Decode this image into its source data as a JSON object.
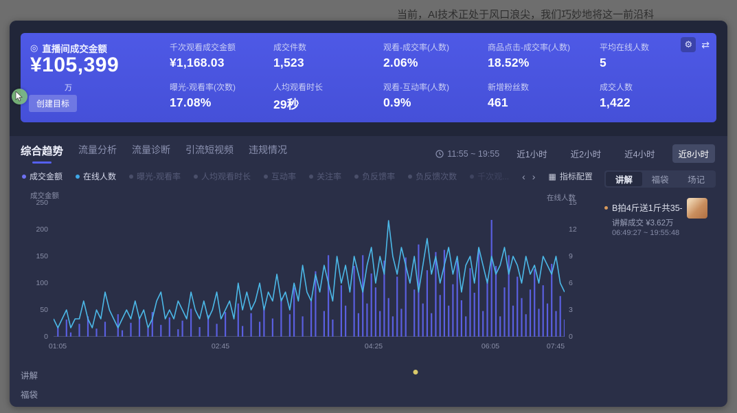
{
  "page": {
    "caption": "当前，AI技术正处于风口浪尖，我们巧妙地将这一前沿科"
  },
  "icons": {
    "target": "◎",
    "gear": "⚙",
    "swap": "⇄",
    "grid": "▦",
    "prev": "‹",
    "next": "›"
  },
  "summary_card": {
    "main_label": "直播间成交金额",
    "main_value": "¥105,399",
    "main_unit": "万",
    "create_goal_button": "创建目标",
    "metrics": [
      {
        "label": "千次观看成交金额",
        "value": "¥1,168.03"
      },
      {
        "label": "成交件数",
        "value": "1,523"
      },
      {
        "label": "观看-成交率(人数)",
        "value": "2.06%"
      },
      {
        "label": "商品点击-成交率(人数)",
        "value": "18.52%"
      },
      {
        "label": "平均在线人数",
        "value": "5"
      },
      {
        "label": "曝光-观看率(次数)",
        "value": "17.08%"
      },
      {
        "label": "人均观看时长",
        "value": "29秒"
      },
      {
        "label": "观看-互动率(人数)",
        "value": "0.9%"
      },
      {
        "label": "新增粉丝数",
        "value": "461"
      },
      {
        "label": "成交人数",
        "value": "1,422"
      }
    ]
  },
  "tabs": [
    {
      "label": "综合趋势",
      "active": true
    },
    {
      "label": "流量分析",
      "active": false
    },
    {
      "label": "流量诊断",
      "active": false
    },
    {
      "label": "引流短视频",
      "active": false
    },
    {
      "label": "违规情况",
      "active": false
    }
  ],
  "time_filter": {
    "range": "11:55 ~ 19:55",
    "options": [
      {
        "label": "近1小时",
        "active": false
      },
      {
        "label": "近2小时",
        "active": false
      },
      {
        "label": "近4小时",
        "active": false
      },
      {
        "label": "近8小时",
        "active": true
      }
    ]
  },
  "legend": {
    "items": [
      {
        "label": "成交金额",
        "color": "#6e71f2",
        "active": true
      },
      {
        "label": "在线人数",
        "color": "#3fa8e8",
        "active": true
      },
      {
        "label": "曝光-观看率",
        "color": "#4a4f6a",
        "active": false
      },
      {
        "label": "人均观看时长",
        "color": "#4a4f6a",
        "active": false
      },
      {
        "label": "互动率",
        "color": "#4a4f6a",
        "active": false
      },
      {
        "label": "关注率",
        "color": "#4a4f6a",
        "active": false
      },
      {
        "label": "负反馈率",
        "color": "#4a4f6a",
        "active": false
      },
      {
        "label": "负反馈次数",
        "color": "#4a4f6a",
        "active": false
      },
      {
        "label": "千次观...",
        "color": "#3f4460",
        "active": false
      }
    ],
    "config_label": "指标配置"
  },
  "chart_data": {
    "type": "line",
    "title": "综合趋势",
    "x_ticks": [
      "01:05",
      "02:45",
      "04:25",
      "06:05",
      "07:45"
    ],
    "left_axis": {
      "label": "成交金额",
      "range": [
        0,
        250
      ],
      "ticks": [
        250,
        200,
        150,
        100,
        50,
        0
      ]
    },
    "right_axis": {
      "label": "在线人数",
      "range": [
        0,
        15
      ],
      "ticks": [
        15,
        12,
        9,
        6,
        3,
        0
      ]
    },
    "grid": false,
    "legend_position": "top",
    "series": [
      {
        "name": "成交金额",
        "type": "spike",
        "axis": "left",
        "color": "#5a5fe0",
        "values": [
          0,
          18,
          0,
          32,
          8,
          0,
          24,
          0,
          38,
          0,
          15,
          0,
          28,
          0,
          0,
          42,
          12,
          0,
          26,
          0,
          34,
          0,
          16,
          46,
          0,
          22,
          0,
          36,
          0,
          14,
          30,
          0,
          52,
          0,
          18,
          0,
          40,
          0,
          24,
          0,
          46,
          0,
          0,
          62,
          20,
          0,
          44,
          0,
          28,
          56,
          0,
          34,
          0,
          72,
          0,
          42,
          92,
          0,
          38,
          0,
          66,
          122,
          0,
          48,
          152,
          32,
          0,
          96,
          58,
          0,
          132,
          44,
          152,
          62,
          118,
          92,
          48,
          142,
          72,
          38,
          112,
          52,
          148,
          0,
          88,
          172,
          62,
          124,
          44,
          158,
          78,
          162,
          58,
          98,
          142,
          68,
          38,
          128,
          82,
          164,
          48,
          108,
          218,
          132,
          38,
          92,
          152,
          58,
          112,
          72,
          42,
          88,
          126,
          52,
          96,
          62,
          136,
          48,
          76,
          32
        ]
      },
      {
        "name": "在线人数",
        "type": "line",
        "axis": "right",
        "color": "#4cb9e8",
        "values": [
          2,
          1,
          2,
          3,
          1,
          2,
          2,
          4,
          2,
          1,
          3,
          2,
          5,
          3,
          2,
          1,
          2,
          3,
          2,
          4,
          2,
          3,
          1,
          2,
          4,
          5,
          2,
          3,
          2,
          4,
          3,
          2,
          5,
          3,
          2,
          4,
          2,
          3,
          5,
          2,
          3,
          4,
          2,
          6,
          3,
          5,
          3,
          4,
          6,
          3,
          5,
          4,
          7,
          4,
          5,
          3,
          6,
          4,
          8,
          5,
          4,
          7,
          5,
          8,
          6,
          4,
          9,
          6,
          8,
          5,
          9,
          7,
          5,
          8,
          10,
          6,
          9,
          7,
          13,
          9,
          7,
          10,
          8,
          6,
          9,
          5,
          8,
          11,
          7,
          9,
          6,
          8,
          10,
          7,
          9,
          5,
          8,
          9,
          6,
          10,
          8,
          6,
          9,
          7,
          8,
          10,
          7,
          9,
          8,
          6,
          9,
          7,
          8,
          6,
          9,
          8,
          7,
          9,
          6,
          5
        ]
      }
    ]
  },
  "timeline": {
    "rows": [
      "讲解",
      "福袋"
    ],
    "marker_row": "讲解",
    "marker_frac": 0.708,
    "marker_color": "#d9c96a"
  },
  "side_panel": {
    "tabs": [
      {
        "label": "讲解",
        "active": true
      },
      {
        "label": "福袋",
        "active": false
      },
      {
        "label": "场记",
        "active": false
      }
    ],
    "items": [
      {
        "title": "B拍4斤送1斤共35-4...",
        "deal_label": "讲解成交 ¥3.62万",
        "time_range": "06:49:27 ~ 19:55:48"
      }
    ]
  }
}
